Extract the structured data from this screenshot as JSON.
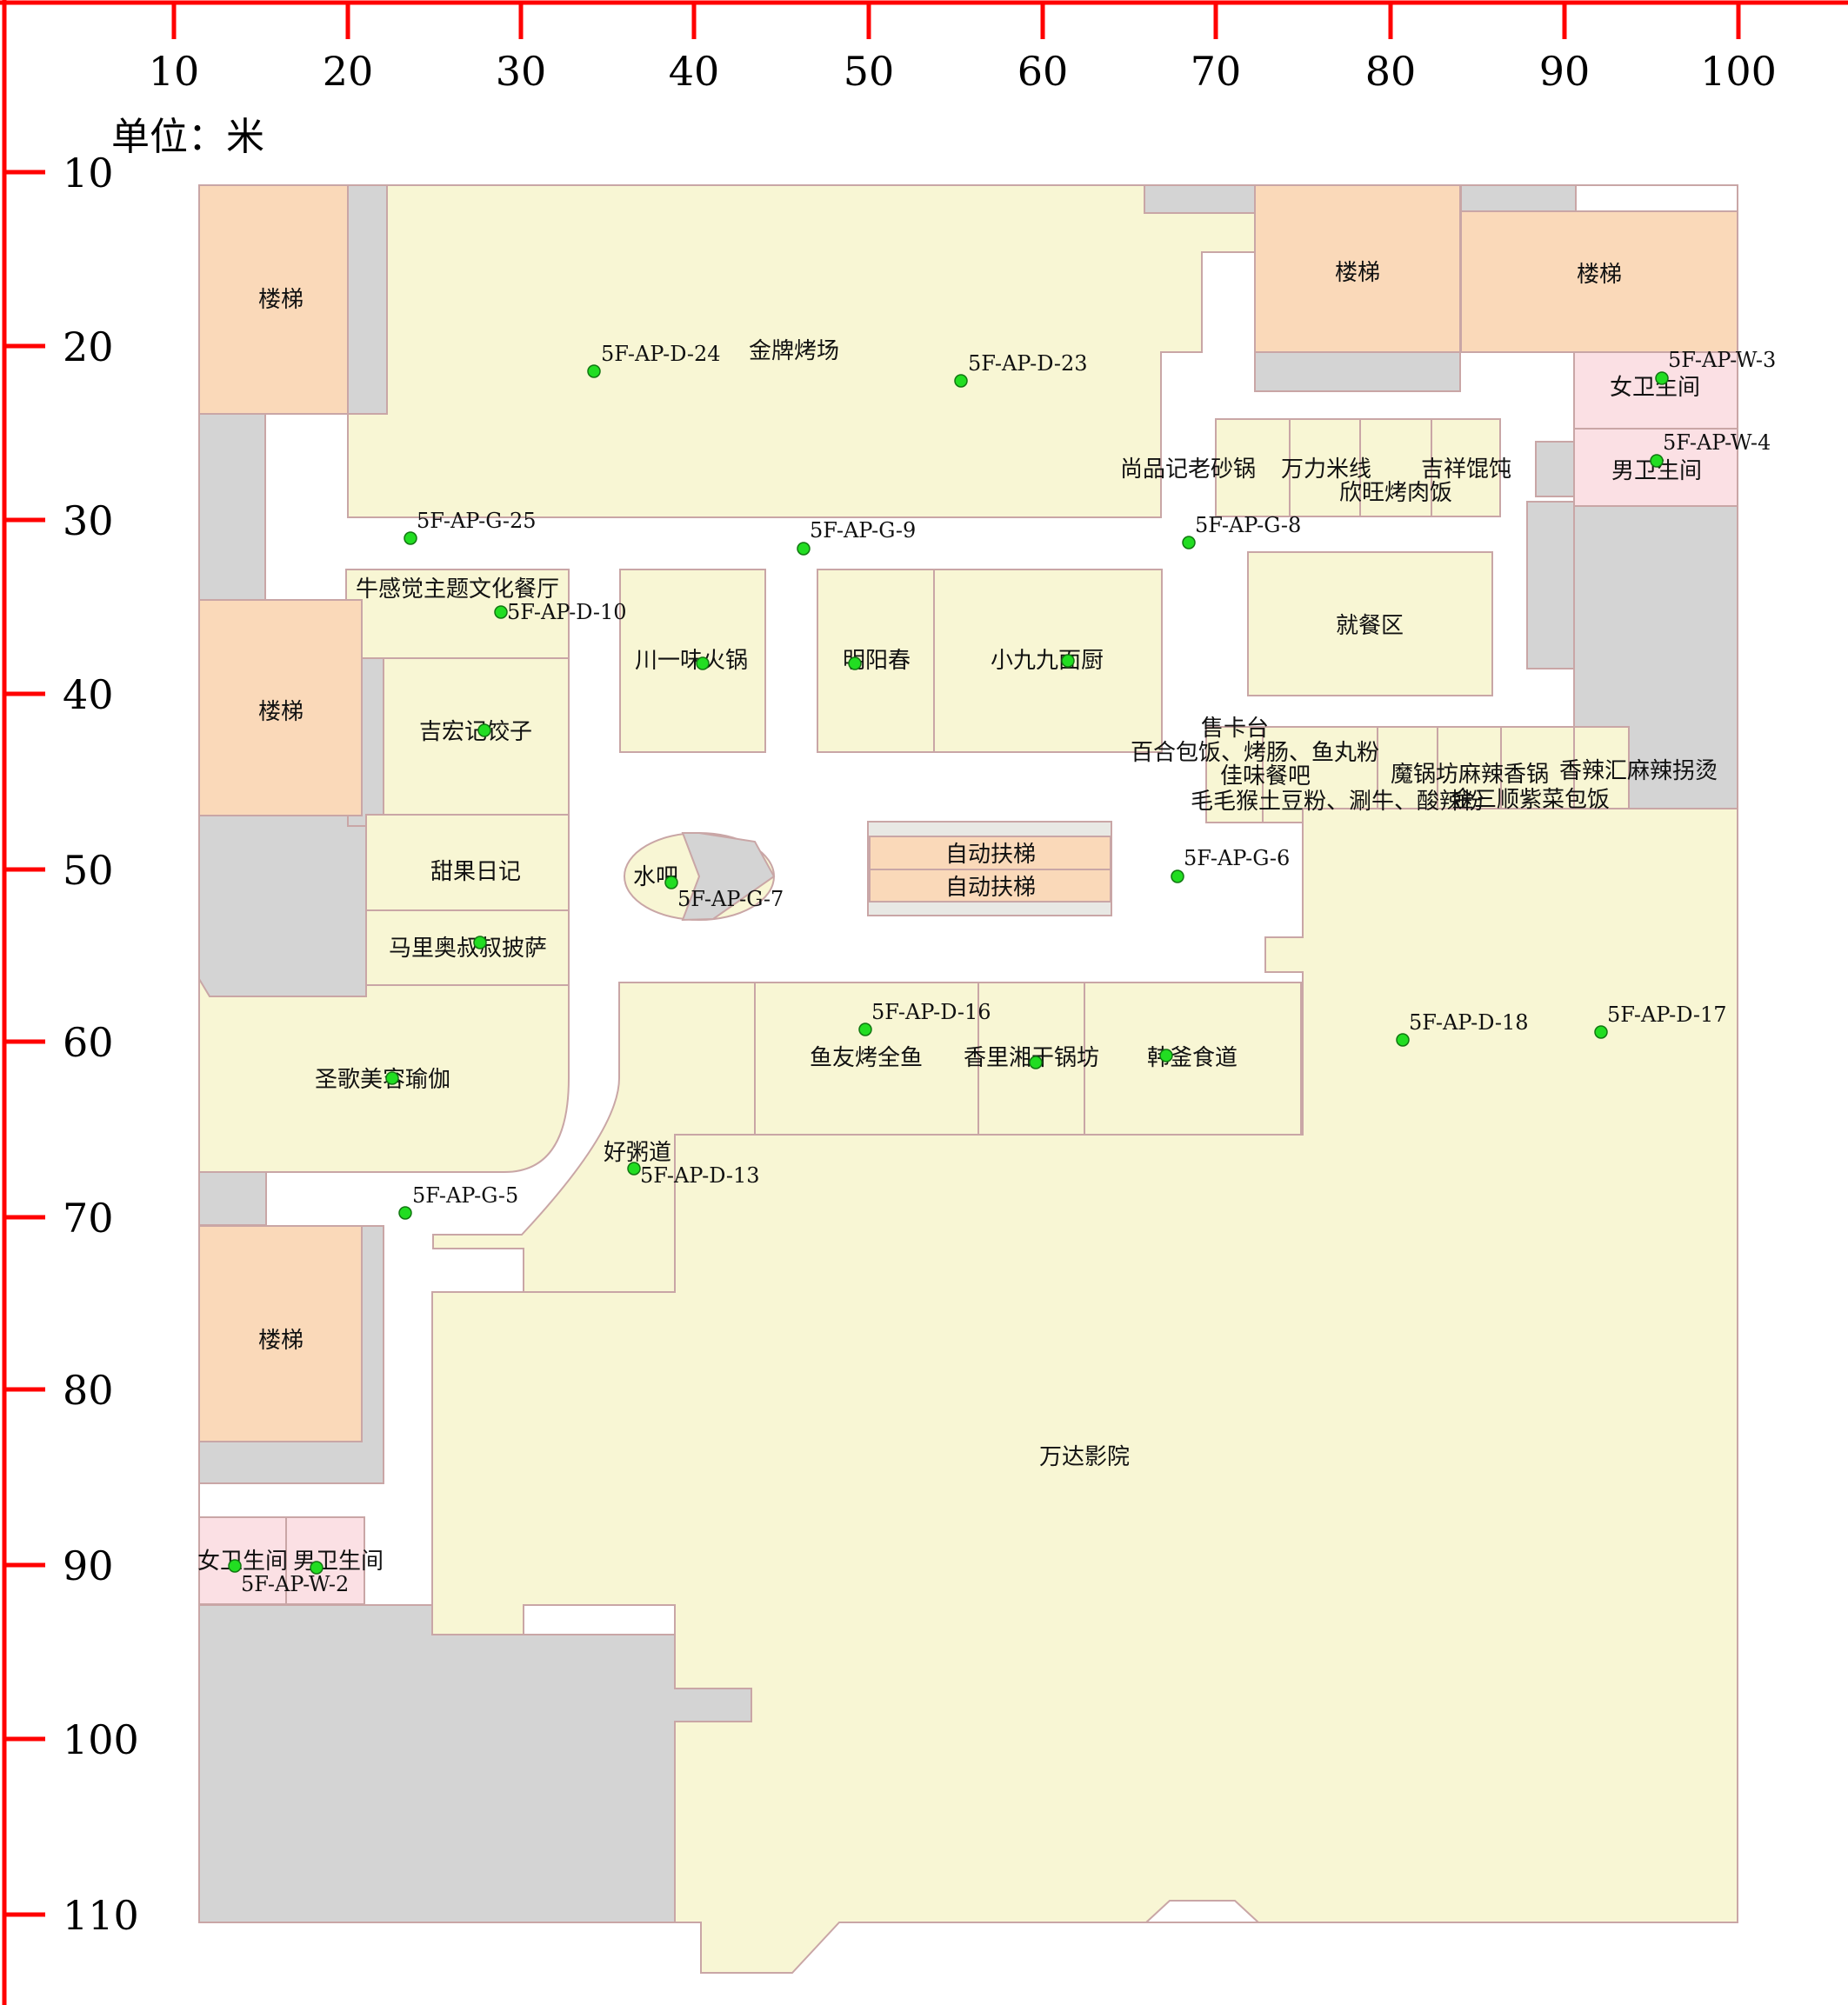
{
  "map": {
    "unit_label": "单位：米",
    "x_ticks": [
      "10",
      "20",
      "30",
      "40",
      "50",
      "60",
      "70",
      "80",
      "90",
      "100"
    ],
    "y_ticks": [
      "10",
      "20",
      "30",
      "40",
      "50",
      "60",
      "70",
      "80",
      "90",
      "100",
      "110"
    ],
    "colors": {
      "axis": "#ff0000",
      "shop_fill": "#f8f6d4",
      "stair_fill": "#fad9b9",
      "restroom_fill": "#fbe0e4",
      "service_fill": "#d4d4d4",
      "outline": "#c9a6a6",
      "ap_dot": "#22dd22"
    }
  },
  "rooms": {
    "stairs_1": "楼梯",
    "stairs_2": "楼梯",
    "stairs_3": "楼梯",
    "stairs_4": "楼梯",
    "stairs_5": "楼梯",
    "jinpai": "金牌烤场",
    "shangpinji": "尚品记老砂锅",
    "wanli": "万力米线",
    "jixiang": "吉祥馄饨",
    "xinwang": "欣旺烤肉饭",
    "women_1": "女卫生间",
    "men_1": "男卫生间",
    "niuganjue": "牛感觉主题文化餐厅",
    "chuanyiwei": "川一味火锅",
    "mingyangchun": "明阳春",
    "xiaojiujiu": "小九九面厨",
    "dining": "就餐区",
    "jihongji": "吉宏记饺子",
    "card_desk": "售卡台",
    "baihe": "百合包饭、烤肠、鱼丸粉",
    "jiawei": "佳味餐吧",
    "maomaohou": "毛毛猴土豆粉、涮牛、酸辣粉",
    "moguofang": "魔锅坊麻辣香锅",
    "xianglahui": "香辣汇麻辣拐烫",
    "jinsanshun": "金三顺紫菜包饭",
    "tianguo": "甜果日记",
    "shuiba": "水吧",
    "escalator_1": "自动扶梯",
    "escalator_2": "自动扶梯",
    "mario": "马里奥叔叔披萨",
    "yuyou": "鱼友烤全鱼",
    "xiangli": "香里湘干锅坊",
    "hanfu": "韩釜食道",
    "shengge": "圣歌美容瑜伽",
    "haozhou": "好粥道",
    "wanda": "万达影院",
    "women_2": "女卫生间",
    "men_2": "男卫生间"
  },
  "access_points": {
    "d24": "5F-AP-D-24",
    "d23": "5F-AP-D-23",
    "w3": "5F-AP-W-3",
    "w4": "5F-AP-W-4",
    "g25": "5F-AP-G-25",
    "g9": "5F-AP-G-9",
    "g8": "5F-AP-G-8",
    "d10": "5F-AP-D-10",
    "g6": "5F-AP-G-6",
    "g7": "5F-AP-G-7",
    "d16": "5F-AP-D-16",
    "d18": "5F-AP-D-18",
    "d17": "5F-AP-D-17",
    "d13": "5F-AP-D-13",
    "g5": "5F-AP-G-5",
    "w2": "5F-AP-W-2"
  }
}
